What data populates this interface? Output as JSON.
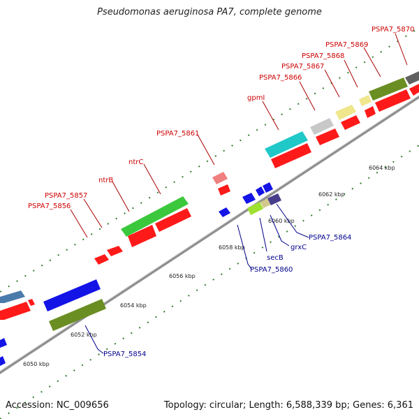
{
  "title": "Pseudomonas aeruginosa PA7, complete genome",
  "footer": {
    "accession": "Accession: NC_009656",
    "stats": "Topology: circular; Length: 6,588,339 bp; Genes: 6,361"
  },
  "colors": {
    "red_label": "#cc0000",
    "blue_label": "#00008b",
    "backbone": "#9a9a9a",
    "tick": "#2f7f2f"
  },
  "ticks": [
    "6050 kbp",
    "6052 kbp",
    "6054 kbp",
    "6056 kbp",
    "6058 kbp",
    "6060 kbp",
    "6062 kbp",
    "6064 kbp"
  ],
  "labels_top": [
    "PSPA7_5870",
    "PSPA7_5869",
    "PSPA7_5868",
    "PSPA7_5867",
    "PSPA7_5866",
    "gpmI",
    "PSPA7_5861",
    "ntrC",
    "ntrB",
    "PSPA7_5857",
    "PSPA7_5856"
  ],
  "labels_bottom": [
    "PSPA7_5864",
    "grxC",
    "secB",
    "PSPA7_5860",
    "PSPA7_5854"
  ]
}
